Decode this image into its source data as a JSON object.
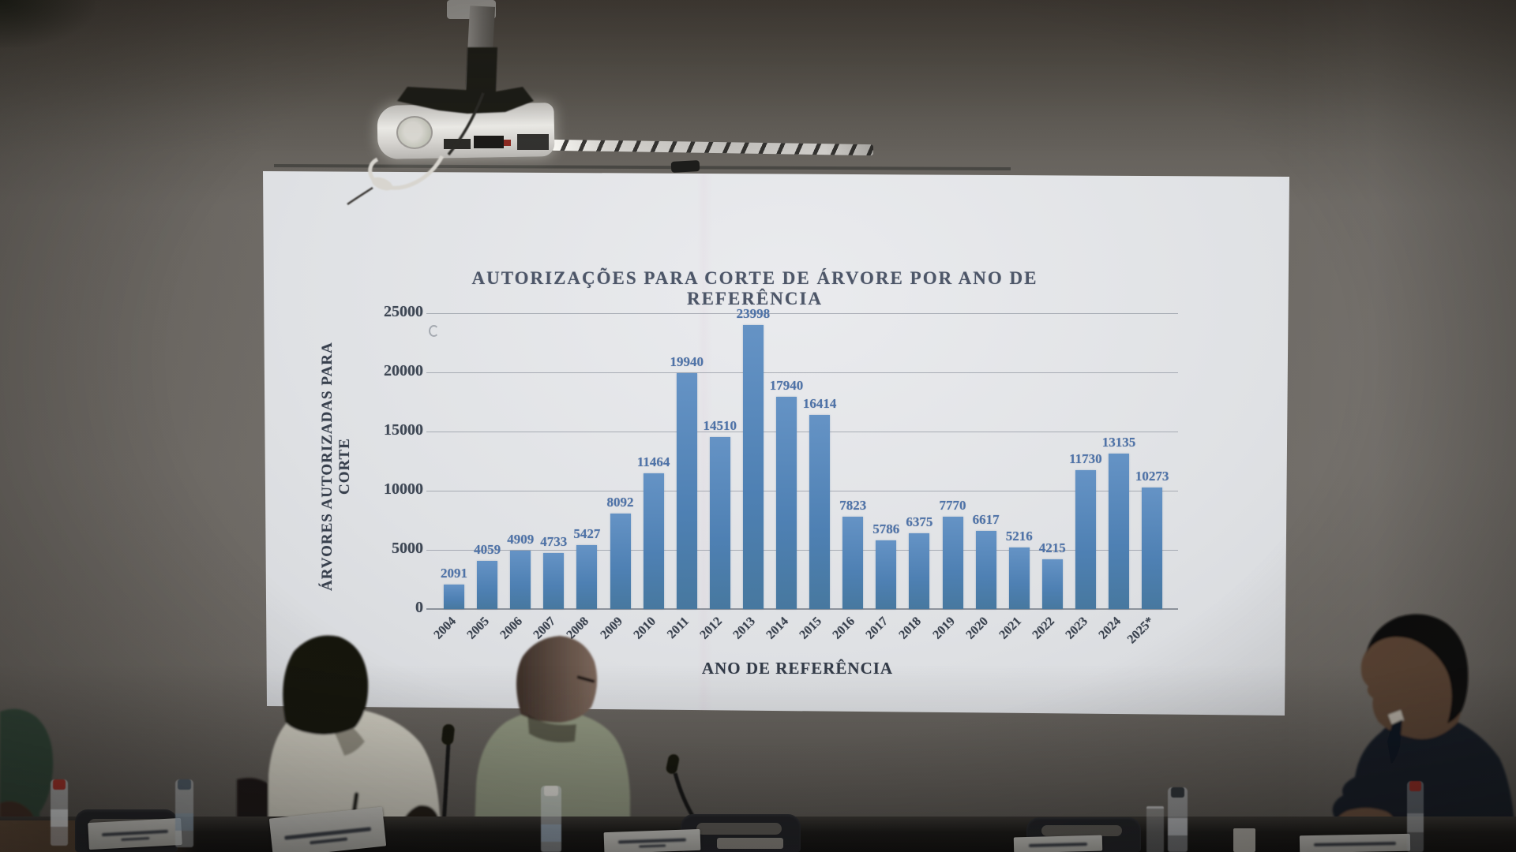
{
  "scene": {
    "description_labels": {
      "screen": "projection screen",
      "projector": "ceiling projector"
    }
  },
  "colors": {
    "bar_blue": "#4e80b3",
    "value_label_blue": "#4e73a9",
    "axis_text": "#3e4754",
    "screen_white": "#dfe1e4",
    "wall_gray": "#6e6a65",
    "suit_navy": "#171c26",
    "red_bottle_cap": "#9c2f27"
  },
  "chart_data": {
    "type": "bar",
    "title": "AUTORIZAÇÕES PARA CORTE DE ÁRVORE POR ANO DE REFERÊNCIA",
    "xlabel": "ANO DE REFERÊNCIA",
    "ylabel": "ÁRVORES AUTORIZADAS PARA CORTE",
    "categories": [
      "2004",
      "2005",
      "2006",
      "2007",
      "2008",
      "2009",
      "2010",
      "2011",
      "2012",
      "2013",
      "2014",
      "2015",
      "2016",
      "2017",
      "2018",
      "2019",
      "2020",
      "2021",
      "2022",
      "2023",
      "2024",
      "2025*"
    ],
    "values": [
      2091,
      4059,
      4909,
      4733,
      5427,
      8092,
      11464,
      19940,
      14510,
      23998,
      17940,
      16414,
      7823,
      5786,
      6375,
      7770,
      6617,
      5216,
      4215,
      11730,
      13135,
      10273
    ],
    "yticks": [
      0,
      5000,
      10000,
      15000,
      20000,
      25000
    ],
    "ylim": [
      0,
      25000
    ],
    "grid": true,
    "legend": null,
    "bar_color": "#4e80b3",
    "label_color": "#4e73a9"
  }
}
